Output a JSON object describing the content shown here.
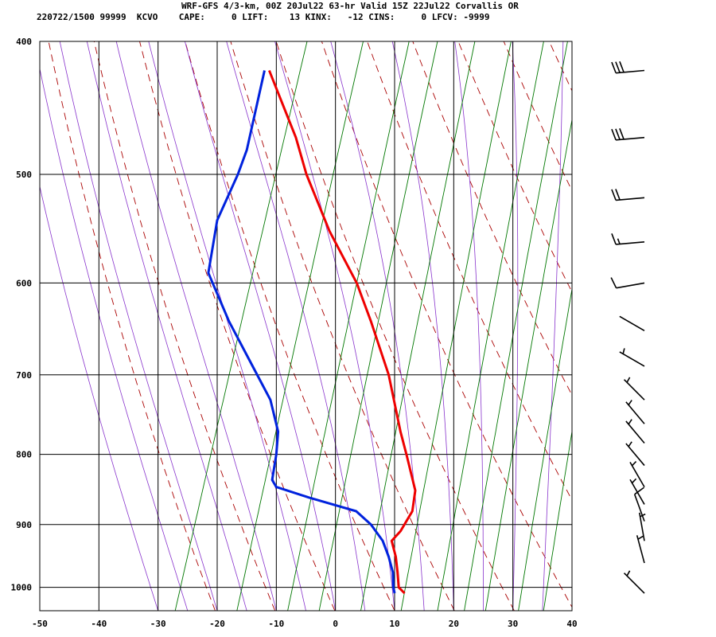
{
  "header": {
    "line1": "WRF-GFS 4/3-km, 00Z 20Jul22 63-hr Valid 15Z 22Jul22 Corvallis OR",
    "line2": "220722/1500 99999  KCVO    CAPE:     0 LIFT:    13 KINX:   -12 CINS:     0 LFCV: -9999"
  },
  "colors": {
    "temperature": "#ee0000",
    "dewpoint": "#0022dd",
    "dry_adiabat": "#aa0000",
    "moist_adiabat": "#8833cc",
    "mixing_ratio": "#007700",
    "isobar": "#000000",
    "isotherm": "#000000",
    "wind_barb": "#000000"
  },
  "chart_data": {
    "type": "skew-t",
    "xlim": [
      -50,
      40
    ],
    "ylim_pressure": [
      1040,
      400
    ],
    "y_scale": "log-pressure",
    "x_ticks": [
      "-50",
      "-40",
      "-30",
      "-20",
      "-10",
      "0",
      "10",
      "20",
      "30",
      "40"
    ],
    "y_ticks": [
      "400",
      "500",
      "600",
      "700",
      "800",
      "900",
      "1000"
    ],
    "temperature": {
      "p": [
        1010,
        1000,
        975,
        950,
        925,
        910,
        880,
        850,
        800,
        770,
        700,
        640,
        600,
        550,
        500,
        470,
        420
      ],
      "t": [
        11.7,
        10.7,
        10.5,
        10.2,
        9.5,
        11.0,
        13.0,
        13.5,
        12.0,
        11.0,
        9.0,
        6.0,
        3.6,
        -1.0,
        -4.9,
        -6.7,
        -11.2
      ]
    },
    "dewpoint": {
      "p": [
        1010,
        1000,
        975,
        950,
        925,
        900,
        880,
        860,
        845,
        835,
        800,
        770,
        730,
        690,
        640,
        590,
        540,
        500,
        480,
        420
      ],
      "td": [
        10.0,
        9.8,
        9.7,
        9.0,
        8.0,
        6.0,
        3.5,
        -4.5,
        -10.0,
        -10.7,
        -10.0,
        -9.7,
        -11.0,
        -14.0,
        -18.0,
        -21.5,
        -20.0,
        -16.5,
        -15.0,
        -12.0
      ]
    },
    "wind_barbs": [
      {
        "p": 1010,
        "dir": 315,
        "spd": 5
      },
      {
        "p": 960,
        "dir": 345,
        "spd": 5
      },
      {
        "p": 925,
        "dir": 350,
        "spd": 5
      },
      {
        "p": 895,
        "dir": 340,
        "spd": 10
      },
      {
        "p": 870,
        "dir": 330,
        "spd": 5
      },
      {
        "p": 845,
        "dir": 330,
        "spd": 5
      },
      {
        "p": 815,
        "dir": 320,
        "spd": 5
      },
      {
        "p": 785,
        "dir": 320,
        "spd": 5
      },
      {
        "p": 760,
        "dir": 320,
        "spd": 5
      },
      {
        "p": 730,
        "dir": 315,
        "spd": 5
      },
      {
        "p": 690,
        "dir": 300,
        "spd": 5
      },
      {
        "p": 650,
        "dir": 300,
        "spd": 0
      },
      {
        "p": 600,
        "dir": 260,
        "spd": 10
      },
      {
        "p": 560,
        "dir": 265,
        "spd": 15
      },
      {
        "p": 520,
        "dir": 265,
        "spd": 20
      },
      {
        "p": 470,
        "dir": 265,
        "spd": 30
      },
      {
        "p": 420,
        "dir": 265,
        "spd": 30
      }
    ]
  }
}
